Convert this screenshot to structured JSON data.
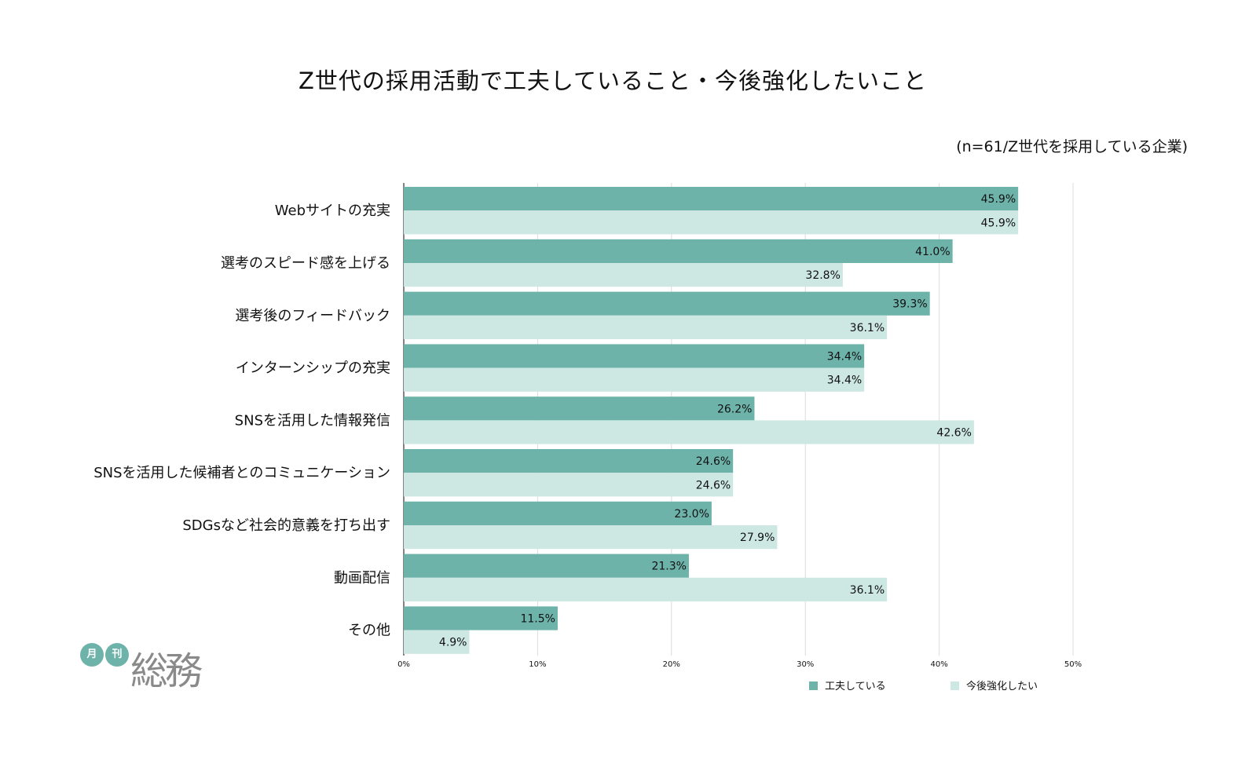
{
  "chart_data": {
    "type": "bar",
    "orientation": "horizontal",
    "title": "Z世代の採用活動で工夫していること・今後強化したいこと",
    "note": "(n=61/Z世代を採用している企業)",
    "categories": [
      "Webサイトの充実",
      "選考のスピード感を上げる",
      "選考後のフィードバック",
      "インターンシップの充実",
      "SNSを活用した情報発信",
      "SNSを活用した候補者とのコミュニケーション",
      "SDGsなど社会的意義を打ち出す",
      "動画配信",
      "その他"
    ],
    "series": [
      {
        "name": "工夫している",
        "color": "#6db3aa",
        "values": [
          45.9,
          41.0,
          39.3,
          34.4,
          26.2,
          24.6,
          23.0,
          21.3,
          11.5
        ]
      },
      {
        "name": "今後強化したい",
        "color": "#cde8e3",
        "values": [
          45.9,
          32.8,
          36.1,
          34.4,
          42.6,
          24.6,
          27.9,
          36.1,
          4.9
        ]
      }
    ],
    "xlim": [
      0,
      50
    ],
    "xticks": [
      "0%",
      "10%",
      "20%",
      "30%",
      "40%",
      "50%"
    ],
    "grid": true,
    "legend": "bottom-right",
    "value_suffix": "%"
  },
  "logo": {
    "badge1": "月",
    "badge2": "刊",
    "name": "総務"
  }
}
